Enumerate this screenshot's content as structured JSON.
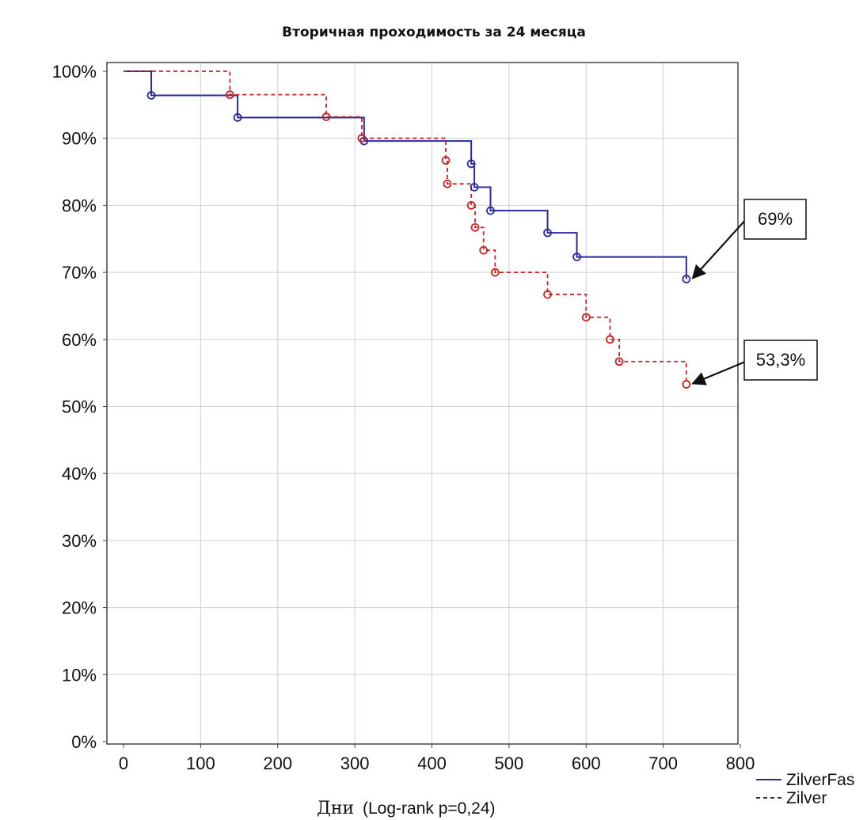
{
  "chart_data": {
    "type": "line",
    "subtype": "kaplan-meier-step",
    "title": "Вторичная проходимость за 24 месяца",
    "xlabel_main": "Дни",
    "xlabel_note": "(Log-rank p=0,24)",
    "xlim": [
      0,
      800
    ],
    "ylim": [
      0,
      100
    ],
    "x_ticks": [
      "0",
      "100",
      "200",
      "300",
      "400",
      "500",
      "600",
      "700",
      "800"
    ],
    "y_ticks": [
      "0%",
      "10%",
      "20%",
      "30%",
      "40%",
      "50%",
      "60%",
      "70%",
      "80%",
      "90%",
      "100%"
    ],
    "grid": true,
    "legend_position": "bottom-right outside",
    "series": [
      {
        "name": "ZilverFas",
        "color": "#2b2b9c",
        "style": "solid",
        "steps": [
          [
            0,
            100
          ],
          [
            36,
            96.4
          ],
          [
            148,
            93.1
          ],
          [
            312,
            89.6
          ],
          [
            451,
            86.2
          ],
          [
            455,
            82.7
          ],
          [
            476,
            79.2
          ],
          [
            550,
            75.9
          ],
          [
            588,
            72.3
          ],
          [
            730,
            69.0
          ]
        ],
        "end_x": 730,
        "censor_x": [
          36,
          148,
          312,
          451,
          455,
          476,
          550,
          588,
          730
        ]
      },
      {
        "name": "Zilver",
        "color": "#cc2222",
        "style": "dashed",
        "steps": [
          [
            0,
            100
          ],
          [
            138,
            96.5
          ],
          [
            263,
            93.2
          ],
          [
            309,
            90.0
          ],
          [
            418,
            86.7
          ],
          [
            420,
            83.2
          ],
          [
            451,
            80.0
          ],
          [
            456,
            76.7
          ],
          [
            467,
            73.3
          ],
          [
            482,
            70.0
          ],
          [
            550,
            66.7
          ],
          [
            600,
            63.3
          ],
          [
            631,
            60.0
          ],
          [
            643,
            56.7
          ],
          [
            730,
            53.3
          ]
        ],
        "end_x": 730,
        "censor_x": [
          138,
          263,
          309,
          418,
          420,
          451,
          456,
          467,
          482,
          550,
          600,
          631,
          643,
          730
        ]
      }
    ],
    "annotations": [
      {
        "text": "69%",
        "x": 730,
        "y": 69.0
      },
      {
        "text": "53,3%",
        "x": 730,
        "y": 53.3
      }
    ]
  }
}
